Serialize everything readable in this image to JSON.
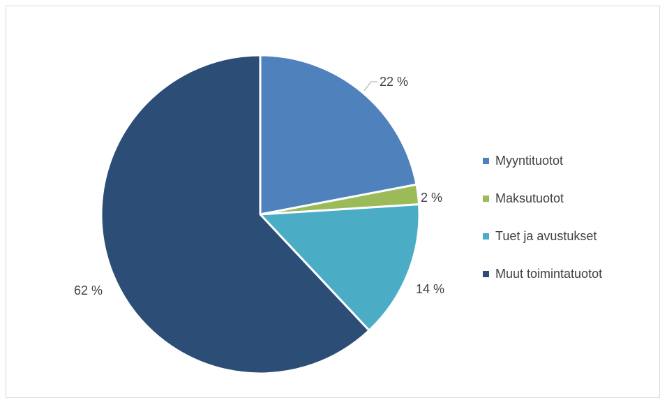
{
  "chart_data": {
    "type": "pie",
    "title": "",
    "start_angle_deg": 0,
    "direction": "clockwise",
    "legend_position": "right",
    "slices": [
      {
        "name": "Myyntituotot",
        "value": 22,
        "label": "22 %",
        "color": "#4F81BD"
      },
      {
        "name": "Maksutuotot",
        "value": 2,
        "label": "2 %",
        "color": "#9BBB59"
      },
      {
        "name": "Tuet ja avustukset",
        "value": 14,
        "label": "14 %",
        "color": "#4BACC6"
      },
      {
        "name": "Muut toimintatuotot",
        "value": 62,
        "label": "62 %",
        "color": "#2C4D75"
      }
    ]
  }
}
